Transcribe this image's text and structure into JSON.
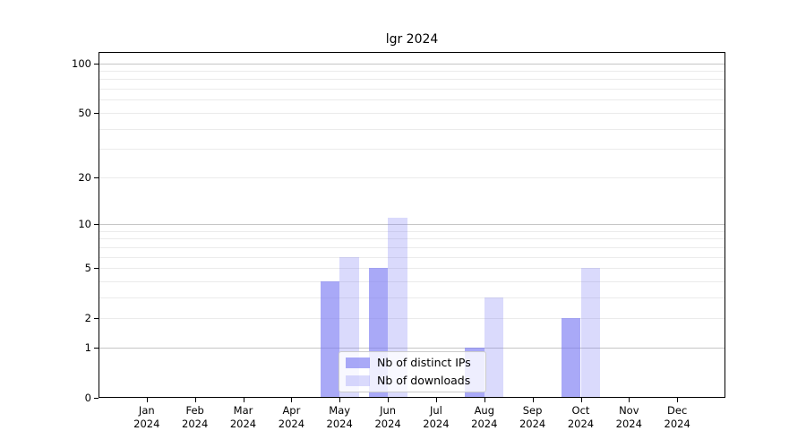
{
  "title": "lgr 2024",
  "colors": {
    "bar_base_rgb": "121,121,243",
    "ips_alpha": 0.64,
    "downloads_alpha": 0.28,
    "grid_major": "#c6c6c6",
    "grid_minor": "#ebebeb",
    "axis": "#000000",
    "legend_border": "#cccccc"
  },
  "chart_data": {
    "type": "bar",
    "title": "lgr 2024",
    "xlabel": "",
    "ylabel": "",
    "categories": [
      "Jan",
      "Feb",
      "Mar",
      "Apr",
      "May",
      "Jun",
      "Jul",
      "Aug",
      "Sep",
      "Oct",
      "Nov",
      "Dec"
    ],
    "category_year": "2024",
    "series": [
      {
        "name": "Nb of distinct IPs",
        "values": [
          0,
          0,
          0,
          0,
          4,
          5,
          0,
          1,
          0,
          2,
          0,
          0
        ]
      },
      {
        "name": "Nb of downloads",
        "values": [
          0,
          0,
          0,
          0,
          6,
          11,
          0,
          3,
          0,
          5,
          0,
          0
        ]
      }
    ],
    "y_scale": "log10(1+v)",
    "ylim": [
      0,
      117
    ],
    "y_ticks": [
      0,
      1,
      2,
      5,
      10,
      20,
      50,
      100
    ],
    "y_major_gridlines": [
      1,
      10,
      100
    ],
    "y_minor_gridlines": [
      2,
      3,
      4,
      5,
      6,
      7,
      8,
      9,
      20,
      30,
      40,
      50,
      60,
      70,
      80,
      90
    ],
    "grid": "both",
    "legend": {
      "position": "lower center",
      "entries": [
        "Nb of distinct IPs",
        "Nb of downloads"
      ]
    }
  }
}
